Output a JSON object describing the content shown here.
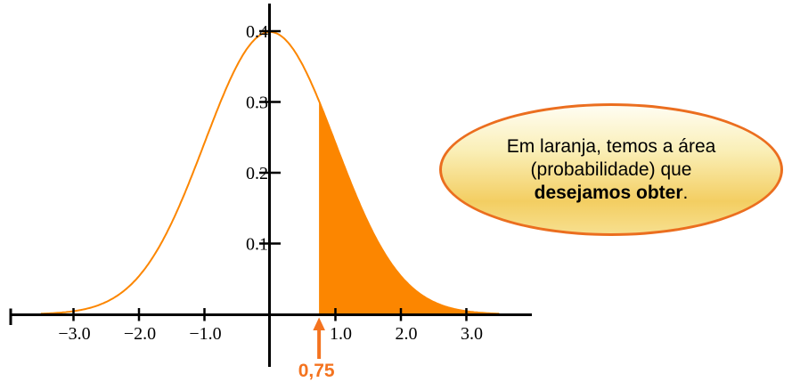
{
  "page": {
    "background": "#FFFFFF"
  },
  "chart_data": {
    "type": "area",
    "title": "",
    "xlabel": "",
    "ylabel": "",
    "curve": {
      "distribution": "normal",
      "mean": 0,
      "sd": 1,
      "x_min": -3.5,
      "x_max": 3.5,
      "peak_value": 0.4
    },
    "x_ticks": [
      {
        "value": -3,
        "label": "−3.0"
      },
      {
        "value": -2,
        "label": "−2.0"
      },
      {
        "value": -1,
        "label": "−1.0"
      },
      {
        "value": 1,
        "label": "1.0"
      },
      {
        "value": 2,
        "label": "2.0"
      },
      {
        "value": 3,
        "label": "3.0"
      }
    ],
    "y_ticks": [
      {
        "value": 0.1,
        "label": "0.1"
      },
      {
        "value": 0.2,
        "label": "0.2"
      },
      {
        "value": 0.3,
        "label": "0.3"
      },
      {
        "value": 0.4,
        "label": "0.4"
      }
    ],
    "xlim": [
      -4,
      4
    ],
    "ylim": [
      0,
      0.44
    ],
    "grid": false,
    "shaded_region": {
      "x_from": 0.75,
      "x_to": 3.5
    },
    "annotation": {
      "x": 0.75,
      "label": "0,75"
    },
    "colors": {
      "curve": "#FC8600",
      "fill": "#FC8600",
      "axis": "#000000",
      "tick_label": "#000000",
      "annotation": "#F4731F"
    }
  },
  "callout": {
    "line1": "Em laranja, temos a área",
    "line2": "(probabilidade) que",
    "line3_bold": "desejamos obter",
    "line3_suffix": ".",
    "border_color": "#EB6E1F",
    "gradient": [
      "#FFFDF2",
      "#FAEFB7",
      "#F3CE62",
      "#F7DF8E"
    ]
  }
}
